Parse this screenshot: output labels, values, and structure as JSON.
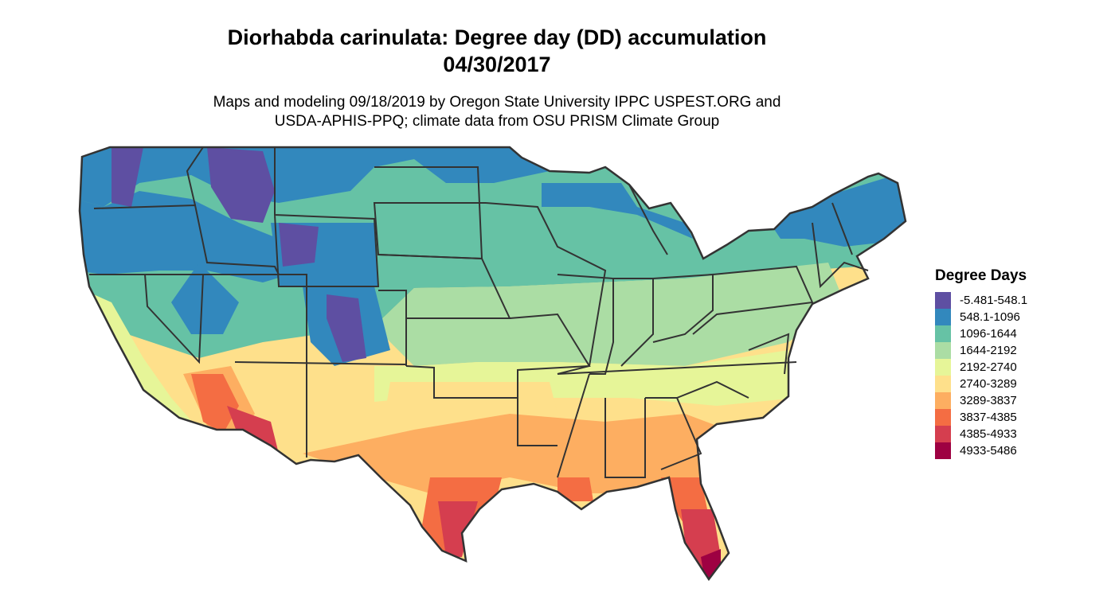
{
  "title": {
    "line1": "Diorhabda carinulata: Degree day (DD) accumulation",
    "line2": "04/30/2017"
  },
  "subtitle": {
    "line1": "Maps and modeling 09/18/2019 by Oregon State University IPPC USPEST.ORG and",
    "line2": "USDA-APHIS-PPQ; climate data from OSU PRISM Climate Group"
  },
  "legend": {
    "title": "Degree Days",
    "items": [
      {
        "label": "-5.481-548.1",
        "color": "#5e4fa2"
      },
      {
        "label": "548.1-1096",
        "color": "#3288bd"
      },
      {
        "label": "1096-1644",
        "color": "#66c2a5"
      },
      {
        "label": "1644-2192",
        "color": "#abdda4"
      },
      {
        "label": "2192-2740",
        "color": "#e6f598"
      },
      {
        "label": "2740-3289",
        "color": "#fee08b"
      },
      {
        "label": "3289-3837",
        "color": "#fdae61"
      },
      {
        "label": "3837-4385",
        "color": "#f46d43"
      },
      {
        "label": "4385-4933",
        "color": "#d53e4f"
      },
      {
        "label": "4933-5486",
        "color": "#9e0142"
      }
    ]
  }
}
